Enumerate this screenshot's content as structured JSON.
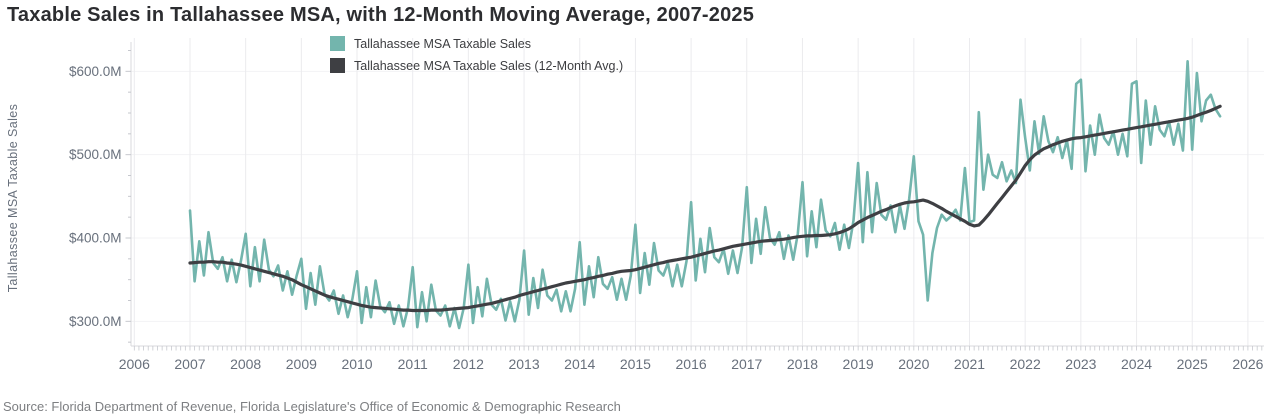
{
  "title": "Taxable Sales in Tallahassee MSA, with 12-Month Moving Average, 2007-2025",
  "source": "Source: Florida Department of Revenue, Florida Legislature's Office of Economic & Demographic Research",
  "colors": {
    "series_monthly": "#73b5ad",
    "series_average": "#3e3f43",
    "grid_vertical": "#ebebee",
    "grid_horizontal": "#f3f3f5",
    "axis_line": "#d8d8dc",
    "tick_mark": "#c6c8ce",
    "tick_text": "#68707c"
  },
  "chart_data": {
    "type": "line",
    "title": "Taxable Sales in Tallahassee MSA, with 12-Month Moving Average, 2007-2025",
    "xlabel": "",
    "ylabel": "Tallahassee MSA Taxable Sales",
    "y_unit": "millions of dollars",
    "x_range": [
      2006,
      2026.3
    ],
    "ylim": [
      260,
      640
    ],
    "grid": "vertical year gridlines, faint horizontal value gridlines",
    "legend_position": "top-center-left, stacked",
    "x_ticks": [
      2006,
      2007,
      2008,
      2009,
      2010,
      2011,
      2012,
      2013,
      2014,
      2015,
      2016,
      2017,
      2018,
      2019,
      2020,
      2021,
      2022,
      2023,
      2024,
      2025,
      2026
    ],
    "y_ticks": [
      {
        "value": 300,
        "label": "$300.0M"
      },
      {
        "value": 400,
        "label": "$400.0M"
      },
      {
        "value": 500,
        "label": "$500.0M"
      },
      {
        "value": 600,
        "label": "$600.0M"
      }
    ],
    "x_start": 2007.0,
    "x_step": 0.0833333333,
    "series": [
      {
        "name": "Tallahassee MSA Taxable Sales",
        "color": "#73b5ad",
        "line_width": 2.6,
        "values": [
          433,
          348,
          396,
          355,
          407,
          370,
          363,
          377,
          348,
          374,
          347,
          373,
          405,
          342,
          389,
          348,
          398,
          362,
          354,
          367,
          337,
          360,
          332,
          355,
          375,
          315,
          358,
          320,
          366,
          333,
          325,
          337,
          309,
          331,
          305,
          327,
          360,
          298,
          341,
          305,
          349,
          318,
          311,
          323,
          297,
          319,
          294,
          317,
          365,
          293,
          335,
          300,
          344,
          313,
          307,
          319,
          294,
          316,
          292,
          316,
          368,
          298,
          341,
          306,
          351,
          320,
          314,
          327,
          301,
          324,
          300,
          326,
          385,
          308,
          352,
          316,
          362,
          331,
          325,
          338,
          312,
          336,
          312,
          339,
          395,
          320,
          366,
          329,
          377,
          345,
          339,
          353,
          326,
          351,
          326,
          355,
          416,
          334,
          382,
          344,
          394,
          361,
          355,
          370,
          342,
          368,
          342,
          372,
          443,
          349,
          399,
          359,
          412,
          377,
          371,
          387,
          357,
          385,
          358,
          389,
          461,
          370,
          423,
          381,
          437,
          400,
          392,
          407,
          375,
          403,
          374,
          405,
          467,
          378,
          432,
          389,
          446,
          409,
          402,
          418,
          386,
          416,
          388,
          421,
          490,
          395,
          479,
          407,
          466,
          428,
          422,
          439,
          407,
          439,
          411,
          447,
          498,
          420,
          404,
          325,
          382,
          412,
          428,
          421,
          426,
          434,
          421,
          484,
          419,
          421,
          551,
          458,
          500,
          476,
          472,
          491,
          468,
          481,
          466,
          566,
          520,
          481,
          540,
          501,
          546,
          516,
          503,
          521,
          496,
          517,
          483,
          585,
          590,
          480,
          535,
          500,
          548,
          520,
          512,
          528,
          500,
          525,
          498,
          585,
          588,
          490,
          565,
          512,
          558,
          530,
          522,
          540,
          512,
          537,
          505,
          612,
          506,
          598,
          540,
          565,
          572,
          555,
          546
        ]
      },
      {
        "name": "Tallahassee MSA Taxable Sales (12-Month Avg.)",
        "color": "#3e3f43",
        "line_width": 3.2,
        "values": [
          370,
          370.5,
          371,
          371,
          371.5,
          371.5,
          371,
          371,
          370,
          369.5,
          368.5,
          367.5,
          366,
          364.5,
          363,
          361.5,
          360,
          358.5,
          357,
          355.5,
          354,
          352,
          350,
          347,
          344,
          341.5,
          339,
          336.5,
          334,
          331.5,
          329.5,
          328,
          326.5,
          325,
          323.5,
          322,
          320.5,
          319,
          318,
          317,
          316.5,
          316,
          315.5,
          315,
          314.5,
          314,
          313.5,
          313.5,
          313,
          313,
          313,
          313,
          313.5,
          313.5,
          313.5,
          314,
          314.5,
          315,
          315.5,
          316,
          316.5,
          317.5,
          318.5,
          319.5,
          320.5,
          321.5,
          323,
          324.5,
          326,
          327.5,
          329,
          331,
          332.5,
          334,
          335.5,
          337,
          338.5,
          340,
          341.5,
          343,
          344.5,
          346,
          347,
          348,
          349,
          350,
          351.5,
          352.5,
          354,
          355,
          356.5,
          357.5,
          359,
          360,
          360.5,
          361,
          362,
          363.5,
          365,
          366.5,
          368,
          369.5,
          370.5,
          372,
          373,
          374,
          375,
          376,
          377,
          378.5,
          380,
          381.5,
          383,
          384.5,
          385.5,
          387,
          388.5,
          390,
          391,
          392,
          393,
          394,
          395,
          396,
          396.5,
          397,
          397.5,
          398,
          398.5,
          399.5,
          400.5,
          401.5,
          402,
          402.5,
          402.5,
          403,
          403,
          403.5,
          404,
          405,
          406.5,
          408.5,
          411,
          414.5,
          418.5,
          421.5,
          424.5,
          427,
          429.5,
          432,
          434,
          436.5,
          438.5,
          440.5,
          442,
          443,
          443.5,
          444.5,
          445.5,
          444,
          441.5,
          438.5,
          435.5,
          432,
          429,
          426,
          423,
          420,
          416.5,
          414.5,
          415.5,
          421,
          427.5,
          434.5,
          441.5,
          448.5,
          455.5,
          462.5,
          469.5,
          478,
          487,
          494,
          499.5,
          503.5,
          507,
          509.5,
          512,
          514,
          516,
          517.5,
          519,
          520,
          520.5,
          521.5,
          522.5,
          523.5,
          524.5,
          525.5,
          526.5,
          527.5,
          528.5,
          529.5,
          530.5,
          531.5,
          532.5,
          533.5,
          534.5,
          535.5,
          536.5,
          537.5,
          538.5,
          539.5,
          540.5,
          541.5,
          542.5,
          543.5,
          545,
          547,
          549,
          551,
          553,
          555.5,
          558
        ]
      }
    ]
  }
}
